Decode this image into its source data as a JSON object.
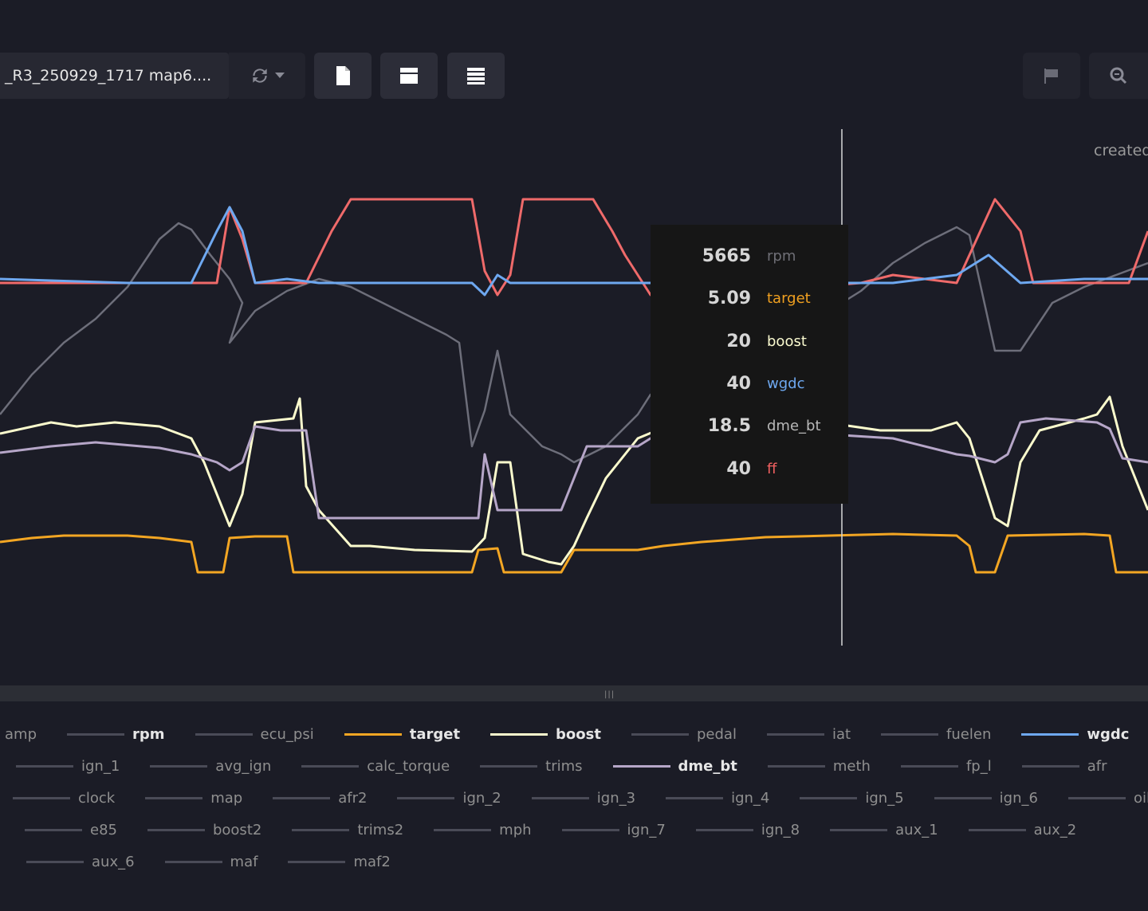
{
  "toolbar": {
    "file_name": "_R3_250929_1717 map6....",
    "sync_icon": "sync-icon",
    "buttons": [
      {
        "name": "file-button",
        "icon": "file-icon"
      },
      {
        "name": "single-view-button",
        "icon": "layout-single-icon"
      },
      {
        "name": "stacked-view-button",
        "icon": "layout-stacked-icon"
      },
      {
        "name": "flag-button",
        "icon": "flag-icon"
      },
      {
        "name": "zoom-button",
        "icon": "zoom-icon"
      }
    ]
  },
  "created_label": "created",
  "tooltip": {
    "rows": [
      {
        "value": "5665",
        "name": "rpm",
        "color": "#6f6f76"
      },
      {
        "value": "5.09",
        "name": "target",
        "color": "#f0a020"
      },
      {
        "value": "20",
        "name": "boost",
        "color": "#fbfbd0"
      },
      {
        "value": "40",
        "name": "wgdc",
        "color": "#6ea8f0"
      },
      {
        "value": "18.5",
        "name": "dme_bt",
        "color": "#b8b8b8"
      },
      {
        "value": "40",
        "name": "ff",
        "color": "#f06060"
      }
    ]
  },
  "chart_data": {
    "type": "line",
    "cursor_x": 132,
    "x_range": [
      0,
      180
    ],
    "series": [
      {
        "name": "rpm",
        "color": "#6d6e7a",
        "points": [
          [
            0,
            380
          ],
          [
            5,
            330
          ],
          [
            10,
            290
          ],
          [
            15,
            260
          ],
          [
            20,
            220
          ],
          [
            25,
            160
          ],
          [
            28,
            140
          ],
          [
            30,
            148
          ],
          [
            33,
            180
          ],
          [
            36,
            210
          ],
          [
            38,
            240
          ],
          [
            36,
            290
          ],
          [
            40,
            250
          ],
          [
            45,
            225
          ],
          [
            50,
            210
          ],
          [
            55,
            220
          ],
          [
            60,
            240
          ],
          [
            65,
            260
          ],
          [
            70,
            280
          ],
          [
            72,
            290
          ],
          [
            74,
            420
          ],
          [
            76,
            375
          ],
          [
            78,
            300
          ],
          [
            80,
            380
          ],
          [
            85,
            420
          ],
          [
            88,
            430
          ],
          [
            90,
            440
          ],
          [
            95,
            420
          ],
          [
            100,
            380
          ],
          [
            102,
            355
          ],
          [
            105,
            345
          ],
          [
            110,
            330
          ],
          [
            115,
            320
          ],
          [
            120,
            290
          ],
          [
            125,
            265
          ],
          [
            130,
            245
          ],
          [
            132,
            240
          ],
          [
            135,
            225
          ],
          [
            140,
            190
          ],
          [
            145,
            165
          ],
          [
            150,
            145
          ],
          [
            152,
            155
          ],
          [
            156,
            300
          ],
          [
            160,
            300
          ],
          [
            165,
            240
          ],
          [
            170,
            220
          ],
          [
            175,
            205
          ],
          [
            180,
            190
          ]
        ]
      },
      {
        "name": "ff",
        "color": "#ef6a6a",
        "points": [
          [
            0,
            215
          ],
          [
            20,
            215
          ],
          [
            34,
            215
          ],
          [
            36,
            120
          ],
          [
            38,
            160
          ],
          [
            40,
            215
          ],
          [
            48,
            215
          ],
          [
            52,
            150
          ],
          [
            55,
            110
          ],
          [
            74,
            110
          ],
          [
            76,
            200
          ],
          [
            78,
            230
          ],
          [
            80,
            205
          ],
          [
            82,
            110
          ],
          [
            93,
            110
          ],
          [
            96,
            150
          ],
          [
            98,
            180
          ],
          [
            100,
            205
          ],
          [
            102,
            230
          ],
          [
            104,
            234
          ],
          [
            135,
            215
          ],
          [
            140,
            205
          ],
          [
            150,
            215
          ],
          [
            156,
            110
          ],
          [
            160,
            150
          ],
          [
            162,
            215
          ],
          [
            177,
            215
          ],
          [
            180,
            150
          ]
        ]
      },
      {
        "name": "wgdc",
        "color": "#6ea8f0",
        "points": [
          [
            0,
            210
          ],
          [
            20,
            215
          ],
          [
            30,
            215
          ],
          [
            34,
            150
          ],
          [
            36,
            120
          ],
          [
            38,
            150
          ],
          [
            40,
            215
          ],
          [
            45,
            210
          ],
          [
            50,
            215
          ],
          [
            74,
            215
          ],
          [
            76,
            230
          ],
          [
            78,
            205
          ],
          [
            80,
            215
          ],
          [
            135,
            215
          ],
          [
            140,
            215
          ],
          [
            150,
            205
          ],
          [
            155,
            180
          ],
          [
            160,
            215
          ],
          [
            170,
            210
          ],
          [
            180,
            210
          ]
        ]
      },
      {
        "name": "boost",
        "color": "#fbfbcd",
        "points": [
          [
            0,
            404
          ],
          [
            8,
            390
          ],
          [
            12,
            395
          ],
          [
            18,
            390
          ],
          [
            25,
            395
          ],
          [
            30,
            410
          ],
          [
            32,
            440
          ],
          [
            34,
            480
          ],
          [
            36,
            520
          ],
          [
            38,
            480
          ],
          [
            40,
            390
          ],
          [
            46,
            385
          ],
          [
            47,
            360
          ],
          [
            48,
            470
          ],
          [
            50,
            500
          ],
          [
            55,
            545
          ],
          [
            58,
            545
          ],
          [
            65,
            550
          ],
          [
            74,
            552
          ],
          [
            76,
            535
          ],
          [
            78,
            440
          ],
          [
            80,
            440
          ],
          [
            82,
            555
          ],
          [
            86,
            565
          ],
          [
            88,
            568
          ],
          [
            90,
            545
          ],
          [
            92,
            510
          ],
          [
            95,
            460
          ],
          [
            100,
            410
          ],
          [
            103,
            400
          ],
          [
            132,
            393
          ],
          [
            138,
            400
          ],
          [
            146,
            400
          ],
          [
            150,
            390
          ],
          [
            152,
            410
          ],
          [
            156,
            510
          ],
          [
            158,
            520
          ],
          [
            160,
            440
          ],
          [
            163,
            400
          ],
          [
            170,
            385
          ],
          [
            172,
            380
          ],
          [
            174,
            358
          ],
          [
            176,
            420
          ],
          [
            180,
            500
          ]
        ]
      },
      {
        "name": "dme_bt",
        "color": "#b6a6c8",
        "points": [
          [
            0,
            428
          ],
          [
            8,
            420
          ],
          [
            15,
            415
          ],
          [
            25,
            422
          ],
          [
            30,
            430
          ],
          [
            34,
            440
          ],
          [
            36,
            450
          ],
          [
            38,
            440
          ],
          [
            40,
            395
          ],
          [
            44,
            400
          ],
          [
            48,
            400
          ],
          [
            50,
            510
          ],
          [
            75,
            510
          ],
          [
            76,
            430
          ],
          [
            78,
            500
          ],
          [
            88,
            500
          ],
          [
            90,
            460
          ],
          [
            92,
            420
          ],
          [
            100,
            420
          ],
          [
            102,
            410
          ],
          [
            132,
            406
          ],
          [
            140,
            410
          ],
          [
            150,
            430
          ],
          [
            152,
            432
          ],
          [
            156,
            440
          ],
          [
            158,
            430
          ],
          [
            160,
            390
          ],
          [
            164,
            385
          ],
          [
            172,
            390
          ],
          [
            174,
            398
          ],
          [
            176,
            435
          ],
          [
            180,
            440
          ]
        ]
      },
      {
        "name": "target",
        "color": "#f3a623",
        "points": [
          [
            0,
            540
          ],
          [
            5,
            535
          ],
          [
            10,
            532
          ],
          [
            20,
            532
          ],
          [
            25,
            535
          ],
          [
            30,
            540
          ],
          [
            31,
            578
          ],
          [
            35,
            578
          ],
          [
            36,
            535
          ],
          [
            40,
            533
          ],
          [
            45,
            533
          ],
          [
            46,
            578
          ],
          [
            74,
            578
          ],
          [
            75,
            550
          ],
          [
            78,
            548
          ],
          [
            79,
            578
          ],
          [
            88,
            578
          ],
          [
            90,
            550
          ],
          [
            100,
            550
          ],
          [
            104,
            545
          ],
          [
            110,
            540
          ],
          [
            120,
            534
          ],
          [
            130,
            532
          ],
          [
            140,
            530
          ],
          [
            150,
            532
          ],
          [
            152,
            545
          ],
          [
            153,
            578
          ],
          [
            156,
            578
          ],
          [
            158,
            532
          ],
          [
            170,
            530
          ],
          [
            174,
            532
          ],
          [
            175,
            578
          ],
          [
            180,
            578
          ]
        ]
      }
    ]
  },
  "legend": {
    "rows": [
      [
        {
          "label": "amp",
          "active": false,
          "color": ""
        },
        {
          "label": "rpm",
          "active": true,
          "color": "#4a4b57"
        },
        {
          "label": "ecu_psi",
          "active": false,
          "color": ""
        },
        {
          "label": "target",
          "active": true,
          "color": "#f3a623"
        },
        {
          "label": "boost",
          "active": true,
          "color": "#fbfbcd"
        },
        {
          "label": "pedal",
          "active": false,
          "color": ""
        },
        {
          "label": "iat",
          "active": false,
          "color": ""
        },
        {
          "label": "fuelen",
          "active": false,
          "color": ""
        },
        {
          "label": "wgdc",
          "active": true,
          "color": "#6ea8f0"
        }
      ],
      [
        {
          "label": "ign_1",
          "active": false,
          "color": ""
        },
        {
          "label": "avg_ign",
          "active": false,
          "color": ""
        },
        {
          "label": "calc_torque",
          "active": false,
          "color": ""
        },
        {
          "label": "trims",
          "active": false,
          "color": ""
        },
        {
          "label": "dme_bt",
          "active": true,
          "color": "#b6a6c8"
        },
        {
          "label": "meth",
          "active": false,
          "color": ""
        },
        {
          "label": "fp_l",
          "active": false,
          "color": ""
        },
        {
          "label": "afr",
          "active": false,
          "color": ""
        }
      ],
      [
        {
          "label": "clock",
          "active": false,
          "color": ""
        },
        {
          "label": "map",
          "active": false,
          "color": ""
        },
        {
          "label": "afr2",
          "active": false,
          "color": ""
        },
        {
          "label": "ign_2",
          "active": false,
          "color": ""
        },
        {
          "label": "ign_3",
          "active": false,
          "color": ""
        },
        {
          "label": "ign_4",
          "active": false,
          "color": ""
        },
        {
          "label": "ign_5",
          "active": false,
          "color": ""
        },
        {
          "label": "ign_6",
          "active": false,
          "color": ""
        },
        {
          "label": "oilf",
          "active": false,
          "color": ""
        }
      ],
      [
        {
          "label": "e85",
          "active": false,
          "color": ""
        },
        {
          "label": "boost2",
          "active": false,
          "color": ""
        },
        {
          "label": "trims2",
          "active": false,
          "color": ""
        },
        {
          "label": "mph",
          "active": false,
          "color": ""
        },
        {
          "label": "ign_7",
          "active": false,
          "color": ""
        },
        {
          "label": "ign_8",
          "active": false,
          "color": ""
        },
        {
          "label": "aux_1",
          "active": false,
          "color": ""
        },
        {
          "label": "aux_2",
          "active": false,
          "color": ""
        }
      ],
      [
        {
          "label": "aux_6",
          "active": false,
          "color": ""
        },
        {
          "label": "maf",
          "active": false,
          "color": ""
        },
        {
          "label": "maf2",
          "active": false,
          "color": ""
        }
      ]
    ]
  }
}
